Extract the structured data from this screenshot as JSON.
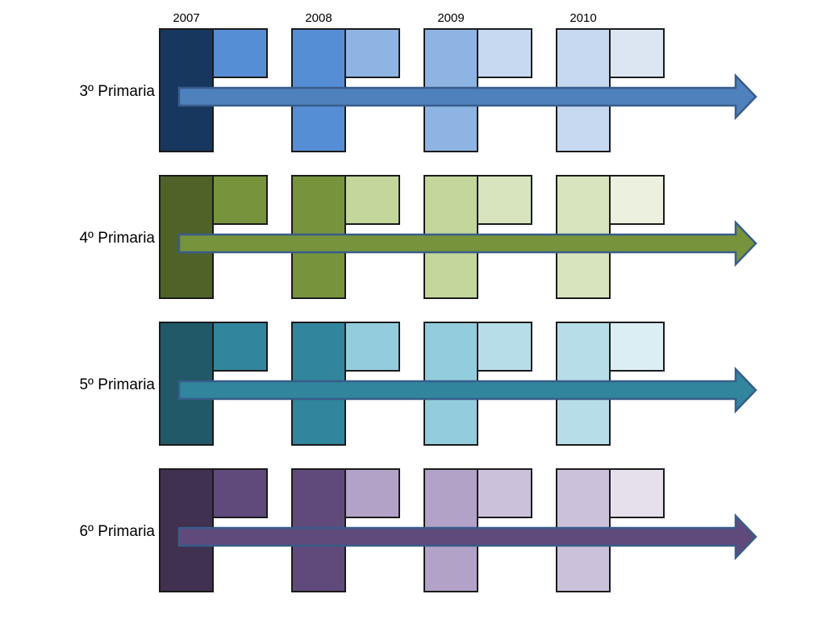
{
  "years": [
    "2007",
    "2008",
    "2009",
    "2010"
  ],
  "rows": [
    {
      "label": "3º Primaria",
      "colors": {
        "tall": [
          "#17375e",
          "#558ed5",
          "#8eb4e3",
          "#c6d9f1"
        ],
        "short": [
          "#558ed5",
          "#8eb4e3",
          "#c6d9f1",
          "#dce6f2"
        ],
        "arrow": "#4f81bd",
        "arrow_border": "#385d8a"
      }
    },
    {
      "label": "4º Primaria",
      "colors": {
        "tall": [
          "#4f6228",
          "#77933c",
          "#c3d69b",
          "#d7e4bd"
        ],
        "short": [
          "#77933c",
          "#c3d69b",
          "#d7e4bd",
          "#ebf1de"
        ],
        "arrow": "#77933c",
        "arrow_border": "#385d8a"
      }
    },
    {
      "label": "5º Primaria",
      "colors": {
        "tall": [
          "#215968",
          "#31859c",
          "#93cddd",
          "#b7dee8"
        ],
        "short": [
          "#31859c",
          "#93cddd",
          "#b7dee8",
          "#dbeef4"
        ],
        "arrow": "#31859c",
        "arrow_border": "#385d8a"
      }
    },
    {
      "label": "6º Primaria",
      "colors": {
        "tall": [
          "#403151",
          "#604a7b",
          "#b2a2c7",
          "#ccc1da"
        ],
        "short": [
          "#604a7b",
          "#b2a2c7",
          "#ccc1da",
          "#e6e0ec"
        ],
        "arrow": "#604a7b",
        "arrow_border": "#385d8a"
      }
    }
  ]
}
